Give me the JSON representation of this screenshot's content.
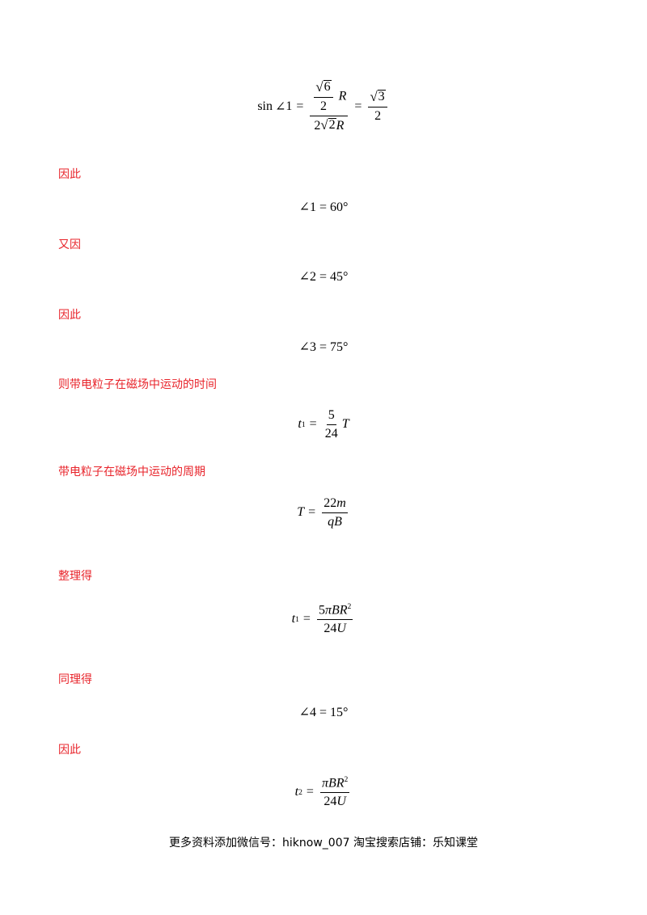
{
  "equations": {
    "e1": {
      "sin": "sin",
      "angle": "∠",
      "one": "1",
      "eq": "=",
      "inner_sqrt": "6",
      "inner_den": "2",
      "R": "R",
      "den_coef": "2",
      "den_sqrt": "2",
      "den_R": "R",
      "eq2": "=",
      "res_sqrt": "3",
      "res_den": "2"
    },
    "e2": {
      "text": "∠1 = 60°"
    },
    "e3": {
      "text": "∠2 = 45°"
    },
    "e4": {
      "text": "∠3 = 75°"
    },
    "e5": {
      "t": "t",
      "sub": "1",
      "eq": "=",
      "num": "5",
      "den": "24",
      "T": "T"
    },
    "e6": {
      "T": "T",
      "eq": "=",
      "num_coef": "22",
      "num_var": "m",
      "den": "qB"
    },
    "e7": {
      "t": "t",
      "sub": "1",
      "eq": "=",
      "num_coef": "5",
      "num_var": "πBR",
      "num_sup": "2",
      "den_coef": "24",
      "den_var": "U"
    },
    "e8": {
      "text": "∠4 = 15°"
    },
    "e9": {
      "t": "t",
      "sub": "2",
      "eq": "=",
      "num_var": "πBR",
      "num_sup": "2",
      "den_coef": "24",
      "den_var": "U"
    }
  },
  "labels": {
    "l1": "因此",
    "l2": "又因",
    "l3": "因此",
    "l4": "则带电粒子在磁场中运动的时间",
    "l5": "带电粒子在磁场中运动的周期",
    "l6": "整理得",
    "l7": "同理得",
    "l8": "因此"
  },
  "footer": {
    "text": "更多资料添加微信号：hiknow_007   淘宝搜索店铺：乐知课堂"
  },
  "colors": {
    "label": "#e8242b",
    "text": "#000000"
  }
}
